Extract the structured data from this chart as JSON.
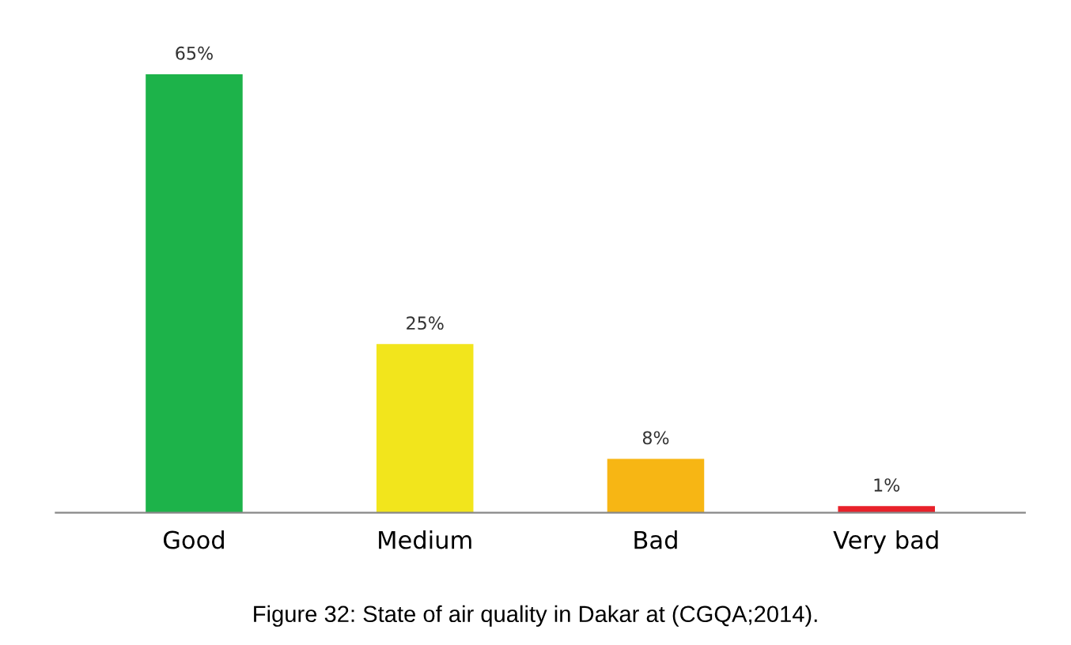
{
  "chart_data": {
    "type": "bar",
    "categories": [
      "Good",
      "Medium",
      "Bad",
      "Very bad"
    ],
    "values": [
      65,
      25,
      8,
      1
    ],
    "value_labels": [
      "65%",
      "25%",
      "8%",
      "1%"
    ],
    "colors": [
      "#1db34a",
      "#f2e51c",
      "#f7b614",
      "#e8212a"
    ],
    "tick_labels": "x",
    "annotations": [
      "Figure 32: State of air quality in Dakar at (CGQA;2014)."
    ]
  }
}
